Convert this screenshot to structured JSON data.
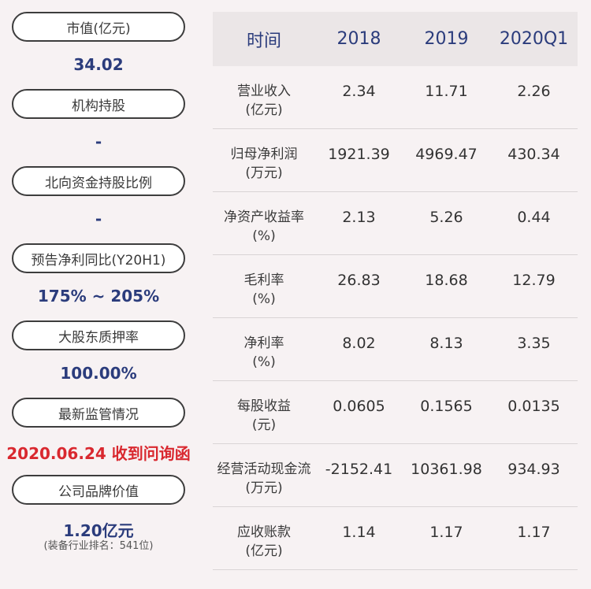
{
  "left_panel": [
    {
      "label": "市值(亿元)",
      "value": "34.02",
      "color": "#2b3c7c"
    },
    {
      "label": "机构持股",
      "value": "-",
      "color": "#2b3c7c"
    },
    {
      "label": "北向资金持股比例",
      "value": "-",
      "color": "#2b3c7c"
    },
    {
      "label": "预告净利同比(Y20H1)",
      "value": "175% ~ 205%",
      "color": "#2b3c7c"
    },
    {
      "label": "大股东质押率",
      "value": "100.00%",
      "color": "#2b3c7c"
    },
    {
      "label": "最新监管情况",
      "value": "2020.06.24 收到问询函",
      "color": "#d9282f"
    },
    {
      "label": "公司品牌价值",
      "value": "1.20亿元",
      "sub": "(装备行业排名：541位)",
      "color": "#2b3c7c"
    }
  ],
  "table": {
    "headers": [
      "时间",
      "2018",
      "2019",
      "2020Q1"
    ],
    "rows": [
      {
        "name": "营业收入",
        "unit": "(亿元)",
        "values": [
          "2.34",
          "11.71",
          "2.26"
        ]
      },
      {
        "name": "归母净利润",
        "unit": "(万元)",
        "values": [
          "1921.39",
          "4969.47",
          "430.34"
        ]
      },
      {
        "name": "净资产收益率",
        "unit": "(%)",
        "values": [
          "2.13",
          "5.26",
          "0.44"
        ]
      },
      {
        "name": "毛利率",
        "unit": "(%)",
        "values": [
          "26.83",
          "18.68",
          "12.79"
        ]
      },
      {
        "name": "净利率",
        "unit": "(%)",
        "values": [
          "8.02",
          "8.13",
          "3.35"
        ]
      },
      {
        "name": "每股收益",
        "unit": "(元)",
        "values": [
          "0.0605",
          "0.1565",
          "0.0135"
        ]
      },
      {
        "name": "经营活动现金流",
        "unit": "(万元)",
        "values": [
          "-2152.41",
          "10361.98",
          "934.93"
        ]
      },
      {
        "name": "应收账款",
        "unit": "(亿元)",
        "values": [
          "1.14",
          "1.17",
          "1.17"
        ]
      }
    ]
  }
}
